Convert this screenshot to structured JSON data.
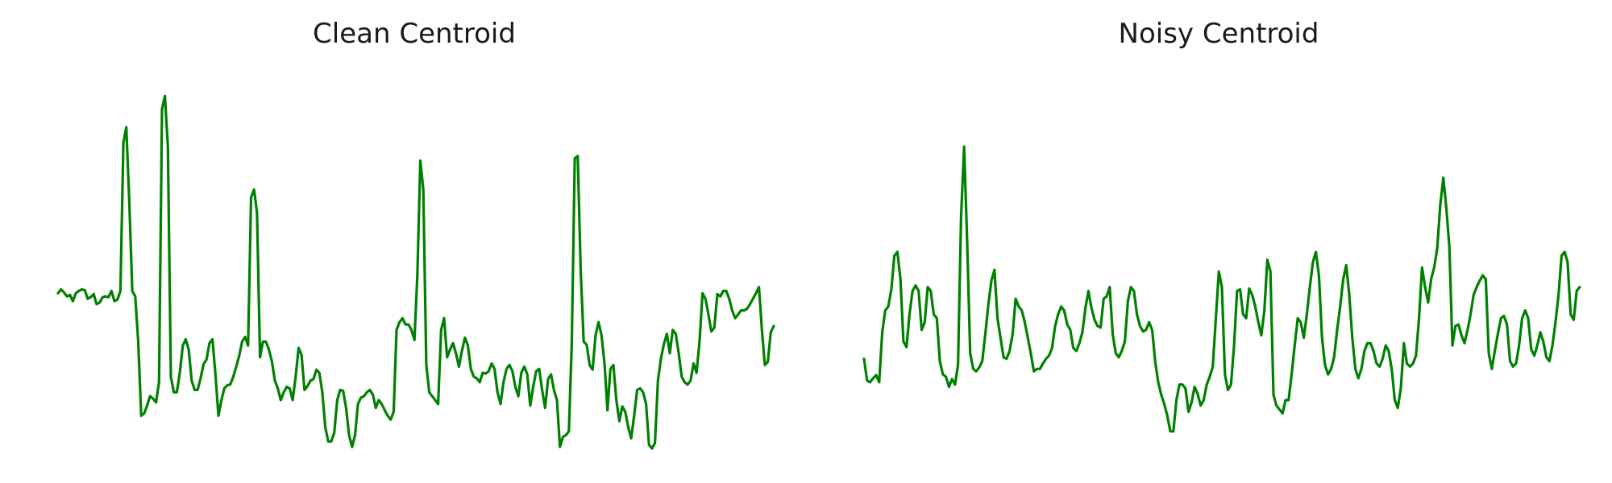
{
  "chart_data": [
    {
      "type": "line",
      "title": "Clean Centroid",
      "xlabel": "",
      "ylabel": "",
      "grid": false,
      "axes_visible": false,
      "line_color": "#008000",
      "xlim": [
        0,
        200
      ],
      "ylim": [
        -2.0,
        2.8
      ],
      "series": [
        {
          "values": [
            0.02,
            0.07,
            0.03,
            -0.02,
            0.0,
            -0.08,
            0.02,
            0.05,
            0.07,
            0.06,
            -0.05,
            -0.03,
            0.01,
            -0.12,
            -0.1,
            -0.03,
            -0.02,
            -0.03,
            0.05,
            -0.08,
            -0.06,
            0.05,
            1.95,
            2.15,
            1.2,
            0.05,
            -0.02,
            -0.6,
            -1.55,
            -1.52,
            -1.42,
            -1.3,
            -1.33,
            -1.38,
            -1.12,
            2.38,
            2.55,
            1.9,
            -1.05,
            -1.25,
            -1.25,
            -1.0,
            -0.65,
            -0.57,
            -0.7,
            -1.1,
            -1.22,
            -1.22,
            -1.07,
            -0.89,
            -0.83,
            -0.62,
            -0.57,
            -1.02,
            -1.55,
            -1.35,
            -1.2,
            -1.16,
            -1.15,
            -1.05,
            -0.92,
            -0.78,
            -0.6,
            -0.54,
            -0.65,
            1.25,
            1.35,
            1.05,
            -0.8,
            -0.6,
            -0.6,
            -0.7,
            -0.85,
            -1.1,
            -1.2,
            -1.35,
            -1.25,
            -1.18,
            -1.2,
            -1.35,
            -1.05,
            -0.68,
            -0.77,
            -1.22,
            -1.17,
            -1.1,
            -1.08,
            -0.96,
            -1.0,
            -1.25,
            -1.7,
            -1.88,
            -1.88,
            -1.77,
            -1.35,
            -1.22,
            -1.23,
            -1.45,
            -1.8,
            -1.95,
            -1.8,
            -1.4,
            -1.32,
            -1.3,
            -1.25,
            -1.22,
            -1.28,
            -1.45,
            -1.35,
            -1.4,
            -1.48,
            -1.55,
            -1.6,
            -1.5,
            -0.45,
            -0.35,
            -0.3,
            -0.38,
            -0.38,
            -0.45,
            -0.58,
            0.25,
            1.72,
            1.35,
            -0.9,
            -1.25,
            -1.3,
            -1.35,
            -1.4,
            -0.45,
            -0.3,
            -0.8,
            -0.7,
            -0.62,
            -0.75,
            -0.92,
            -0.72,
            -0.55,
            -0.65,
            -0.95,
            -1.05,
            -1.07,
            -1.12,
            -1.0,
            -1.01,
            -0.98,
            -0.88,
            -0.95,
            -1.25,
            -1.4,
            -1.12,
            -0.95,
            -0.9,
            -0.98,
            -1.18,
            -1.3,
            -1.0,
            -0.92,
            -1.02,
            -1.42,
            -1.18,
            -0.98,
            -0.95,
            -1.22,
            -1.45,
            -1.08,
            -1.02,
            -1.22,
            -1.35,
            -1.95,
            -1.82,
            -1.8,
            -1.75,
            -0.62,
            1.75,
            1.78,
            0.3,
            -0.6,
            -0.64,
            -0.9,
            -0.96,
            -0.52,
            -0.35,
            -0.52,
            -0.88,
            -1.48,
            -0.95,
            -0.9,
            -1.35,
            -1.62,
            -1.43,
            -1.5,
            -1.7,
            -1.84,
            -1.55,
            -1.22,
            -1.2,
            -1.25,
            -1.4,
            -1.92,
            -1.97,
            -1.9,
            -1.1,
            -0.82,
            -0.63,
            -0.5,
            -0.75,
            -0.45,
            -0.5,
            -0.75,
            -1.05,
            -1.12,
            -1.15,
            -1.1,
            -0.88,
            -1.0,
            -0.6,
            0.02,
            -0.05,
            -0.25,
            -0.47,
            -0.42,
            0.01,
            -0.02,
            0.05,
            0.05,
            -0.05,
            -0.2,
            -0.3,
            -0.25,
            -0.2,
            -0.2,
            -0.18,
            -0.12,
            -0.05,
            0.02,
            0.1,
            -0.45,
            -0.9,
            -0.86,
            -0.48,
            -0.4
          ]
        }
      ]
    },
    {
      "type": "line",
      "title": "Noisy Centroid",
      "xlabel": "",
      "ylabel": "",
      "grid": false,
      "axes_visible": false,
      "line_color": "#008000",
      "xlim": [
        0,
        200
      ],
      "ylim": [
        -2.0,
        2.8
      ],
      "series": [
        {
          "values": [
            -0.82,
            -1.1,
            -1.12,
            -1.07,
            -1.03,
            -1.12,
            -0.48,
            -0.2,
            -0.15,
            0.07,
            0.5,
            0.55,
            0.2,
            -0.6,
            -0.67,
            -0.25,
            0.05,
            0.12,
            0.05,
            -0.45,
            -0.35,
            0.1,
            0.05,
            -0.25,
            -0.3,
            -0.85,
            -1.02,
            -1.05,
            -1.18,
            -1.08,
            -1.15,
            -0.9,
            1.0,
            1.9,
            0.7,
            -0.75,
            -0.95,
            -0.98,
            -0.93,
            -0.85,
            -0.5,
            -0.12,
            0.18,
            0.32,
            -0.3,
            -0.55,
            -0.8,
            -0.82,
            -0.72,
            -0.5,
            -0.05,
            -0.15,
            -0.2,
            -0.35,
            -0.55,
            -0.75,
            -0.98,
            -0.95,
            -0.95,
            -0.88,
            -0.82,
            -0.78,
            -0.68,
            -0.4,
            -0.25,
            -0.15,
            -0.2,
            -0.38,
            -0.45,
            -0.68,
            -0.72,
            -0.62,
            -0.48,
            -0.17,
            0.05,
            -0.17,
            -0.32,
            -0.4,
            -0.42,
            -0.05,
            -0.02,
            0.1,
            -0.5,
            -0.75,
            -0.8,
            -0.72,
            -0.6,
            -0.08,
            0.1,
            0.05,
            -0.25,
            -0.4,
            -0.47,
            -0.45,
            -0.35,
            -0.45,
            -0.85,
            -1.12,
            -1.28,
            -1.4,
            -1.55,
            -1.75,
            -1.75,
            -1.35,
            -1.15,
            -1.15,
            -1.2,
            -1.5,
            -1.38,
            -1.18,
            -1.27,
            -1.42,
            -1.35,
            -1.15,
            -1.05,
            -0.92,
            -0.3,
            0.3,
            0.1,
            -1.02,
            -1.22,
            -1.15,
            -0.65,
            0.05,
            0.07,
            -0.25,
            -0.3,
            0.08,
            0.0,
            -0.15,
            -0.35,
            -0.52,
            -0.2,
            0.45,
            0.3,
            -1.28,
            -1.42,
            -1.47,
            -1.52,
            -1.35,
            -1.35,
            -1.02,
            -0.65,
            -0.3,
            -0.35,
            -0.55,
            -0.25,
            0.1,
            0.42,
            0.55,
            0.25,
            -0.55,
            -0.9,
            -1.02,
            -0.95,
            -0.8,
            -0.45,
            -0.15,
            0.2,
            0.38,
            0.0,
            -0.55,
            -0.95,
            -1.07,
            -0.95,
            -0.72,
            -0.62,
            -0.62,
            -0.72,
            -0.88,
            -0.92,
            -0.82,
            -0.65,
            -0.72,
            -0.95,
            -1.35,
            -1.45,
            -1.2,
            -0.62,
            -0.88,
            -0.92,
            -0.88,
            -0.78,
            -0.3,
            0.35,
            0.1,
            -0.1,
            0.2,
            0.35,
            0.6,
            1.15,
            1.5,
            1.12,
            0.62,
            -0.65,
            -0.4,
            -0.38,
            -0.52,
            -0.62,
            -0.45,
            -0.25,
            0.0,
            0.1,
            0.18,
            0.25,
            0.2,
            -0.75,
            -0.95,
            -0.72,
            -0.5,
            -0.3,
            -0.27,
            -0.38,
            -0.85,
            -0.92,
            -0.88,
            -0.65,
            -0.3,
            -0.2,
            -0.3,
            -0.7,
            -0.78,
            -0.65,
            -0.48,
            -0.6,
            -0.8,
            -0.85,
            -0.65,
            -0.35,
            0.0,
            0.5,
            0.55,
            0.42,
            -0.25,
            -0.32,
            0.05,
            0.1
          ]
        }
      ]
    }
  ]
}
